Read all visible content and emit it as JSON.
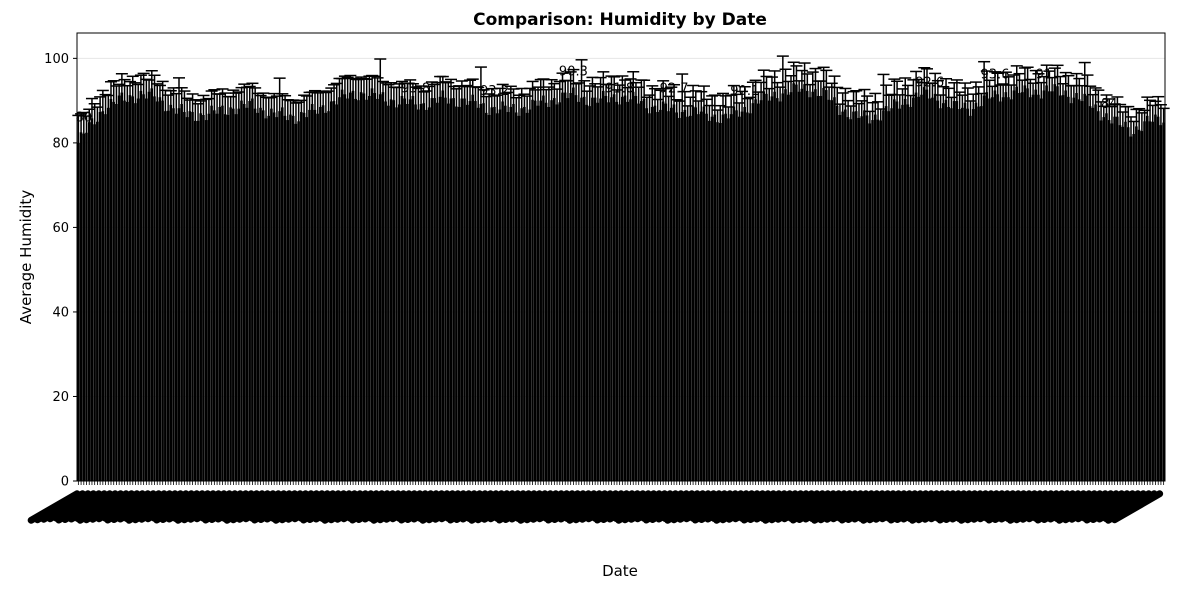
{
  "chart_data": {
    "type": "bar",
    "title": "Comparison: Humidity by Date",
    "xlabel": "Date",
    "ylabel": "Average Humidity",
    "ylim": [
      0,
      106
    ],
    "yticks": [
      0,
      20,
      40,
      60,
      80,
      100
    ],
    "grid": "y",
    "legend": "none",
    "colors": {
      "bar": "#000000",
      "error_bar": "#000000",
      "grid": "#e6e6e6",
      "axes": "#000000"
    },
    "bar_count": 400,
    "values_note": "",
    "anchors": [
      [
        0,
        80.0
      ],
      [
        5,
        84.5
      ],
      [
        10,
        88.6
      ],
      [
        16,
        90.2
      ],
      [
        22,
        91.5
      ],
      [
        28,
        90.9
      ],
      [
        34,
        88.5
      ],
      [
        40,
        86.6
      ],
      [
        48,
        86.8
      ],
      [
        56,
        88.2
      ],
      [
        64,
        88.9
      ],
      [
        72,
        86.7
      ],
      [
        80,
        86.2
      ],
      [
        88,
        87.6
      ],
      [
        96,
        90.5
      ],
      [
        104,
        91.9
      ],
      [
        110,
        90.8
      ],
      [
        118,
        89.9
      ],
      [
        126,
        89.1
      ],
      [
        134,
        90.4
      ],
      [
        142,
        90.0
      ],
      [
        150,
        88.4
      ],
      [
        158,
        87.8
      ],
      [
        166,
        88.5
      ],
      [
        174,
        90.3
      ],
      [
        182,
        91.3
      ],
      [
        190,
        89.9
      ],
      [
        198,
        91.0
      ],
      [
        206,
        89.9
      ],
      [
        212,
        88.4
      ],
      [
        220,
        87.7
      ],
      [
        226,
        87.3
      ],
      [
        232,
        86.7
      ],
      [
        238,
        85.8
      ],
      [
        244,
        87.7
      ],
      [
        250,
        89.8
      ],
      [
        256,
        91.4
      ],
      [
        262,
        92.3
      ],
      [
        268,
        92.9
      ],
      [
        274,
        91.6
      ],
      [
        280,
        88.3
      ],
      [
        286,
        86.1
      ],
      [
        292,
        86.0
      ],
      [
        298,
        87.8
      ],
      [
        304,
        89.8
      ],
      [
        310,
        91.6
      ],
      [
        316,
        90.6
      ],
      [
        322,
        88.4
      ],
      [
        328,
        88.3
      ],
      [
        334,
        90.4
      ],
      [
        340,
        91.6
      ],
      [
        346,
        91.9
      ],
      [
        352,
        92.2
      ],
      [
        358,
        92.4
      ],
      [
        364,
        91.6
      ],
      [
        370,
        90.1
      ],
      [
        376,
        87.3
      ],
      [
        382,
        84.5
      ],
      [
        388,
        83.1
      ],
      [
        394,
        85.0
      ],
      [
        399,
        85.8
      ]
    ],
    "visible_data_labels": [
      {
        "i": 2,
        "text": "80"
      },
      {
        "i": 124,
        "text": "93.8"
      },
      {
        "i": 153,
        "text": "93.2"
      },
      {
        "i": 182,
        "text": "90.3"
      },
      {
        "i": 199,
        "text": "91.8"
      },
      {
        "i": 219,
        "text": "92.7"
      },
      {
        "i": 245,
        "text": "90.1"
      },
      {
        "i": 313,
        "text": "92.6"
      },
      {
        "i": 337,
        "text": "93.6"
      },
      {
        "i": 355,
        "text": "91"
      },
      {
        "i": 379,
        "text": "84"
      }
    ]
  }
}
